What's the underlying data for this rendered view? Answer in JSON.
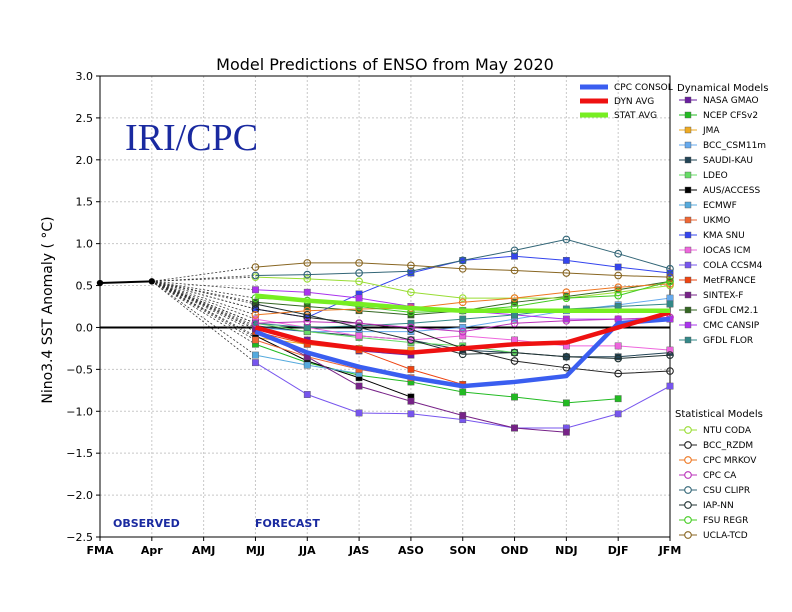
{
  "chart_data": {
    "type": "line",
    "title": "Model Predictions of ENSO from May 2020",
    "watermark": "IRI/CPC",
    "ylabel": "Nino3.4 SST Anomaly ( °C)",
    "xlabel": "",
    "ylim": [
      -2.5,
      3.0
    ],
    "ytick_labels": [
      "3.0",
      "2.5",
      "2.0",
      "1.5",
      "1.0",
      "0.5",
      "0.0",
      "−0.5",
      "−1.0",
      "−1.5",
      "−2.0",
      "−2.5"
    ],
    "ytick_values": [
      3.0,
      2.5,
      2.0,
      1.5,
      1.0,
      0.5,
      0.0,
      -0.5,
      -1.0,
      -1.5,
      -2.0,
      -2.5
    ],
    "categories": [
      "FMA",
      "Apr",
      "AMJ",
      "MJJ",
      "JJA",
      "JAS",
      "ASO",
      "SON",
      "OND",
      "NDJ",
      "DJF",
      "JFM"
    ],
    "grid": true,
    "observed_label": "OBSERVED",
    "forecast_label": "FORECAST",
    "observed": {
      "x": [
        "FMA",
        "Apr"
      ],
      "values": [
        0.53,
        0.55
      ]
    },
    "summary_series": [
      {
        "name": "CPC CONSOL",
        "color": "#3a5ef0",
        "values": [
          null,
          null,
          null,
          -0.05,
          -0.3,
          -0.47,
          -0.6,
          -0.7,
          -0.65,
          -0.58,
          0.05,
          0.1
        ]
      },
      {
        "name": "DYN AVG",
        "color": "#ee1111",
        "values": [
          null,
          null,
          null,
          0.0,
          -0.17,
          -0.25,
          -0.3,
          -0.25,
          -0.2,
          -0.18,
          0.0,
          0.18
        ]
      },
      {
        "name": "STAT AVG",
        "color": "#77ee22",
        "values": [
          null,
          null,
          null,
          0.38,
          0.32,
          0.28,
          0.23,
          0.2,
          0.2,
          0.2,
          0.2,
          0.2
        ]
      }
    ],
    "dynamical_title": "Dynamical Models",
    "dynamical_series": [
      {
        "name": "NASA GMAO",
        "color": "#6a1ea0",
        "values": [
          null,
          null,
          null,
          -0.02,
          -0.15,
          -0.28,
          -0.33,
          null,
          null,
          null,
          null,
          null
        ]
      },
      {
        "name": "NCEP CFSv2",
        "color": "#22bb22",
        "values": [
          null,
          null,
          null,
          -0.2,
          -0.42,
          -0.57,
          -0.65,
          -0.77,
          -0.83,
          -0.9,
          -0.85,
          null
        ]
      },
      {
        "name": "JMA",
        "color": "#eeaa22",
        "values": [
          null,
          null,
          null,
          -0.12,
          -0.2,
          -0.25,
          -0.27,
          null,
          null,
          null,
          null,
          null
        ]
      },
      {
        "name": "BCC_CSM11m",
        "color": "#66aaee",
        "values": [
          null,
          null,
          null,
          0.0,
          -0.05,
          -0.05,
          -0.05,
          0.0,
          0.1,
          0.2,
          0.27,
          0.35
        ]
      },
      {
        "name": "SAUDI-KAU",
        "color": "#224455",
        "values": [
          null,
          null,
          null,
          0.02,
          -0.05,
          -0.1,
          -0.15,
          -0.27,
          -0.3,
          -0.35,
          -0.35,
          -0.3
        ]
      },
      {
        "name": "LDEO",
        "color": "#66dd66",
        "values": [
          null,
          null,
          null,
          0.05,
          -0.05,
          -0.12,
          -0.18,
          -0.22,
          -0.3,
          null,
          null,
          null
        ]
      },
      {
        "name": "AUS/ACCESS",
        "color": "#000000",
        "values": [
          null,
          null,
          null,
          -0.1,
          -0.4,
          -0.6,
          -0.83,
          null,
          null,
          null,
          null,
          null
        ]
      },
      {
        "name": "ECMWF",
        "color": "#55aadd",
        "values": [
          null,
          null,
          null,
          -0.33,
          -0.45,
          -0.55,
          null,
          null,
          null,
          null,
          null,
          null
        ]
      },
      {
        "name": "UKMO",
        "color": "#ee6633",
        "values": [
          null,
          null,
          null,
          -0.15,
          -0.35,
          -0.5,
          -0.6,
          null,
          null,
          null,
          null,
          null
        ]
      },
      {
        "name": "KMA SNU",
        "color": "#3344ee",
        "values": [
          null,
          null,
          null,
          0.22,
          0.12,
          0.4,
          0.65,
          0.8,
          0.85,
          0.8,
          0.72,
          0.65
        ]
      },
      {
        "name": "IOCAS ICM",
        "color": "#ee66dd",
        "values": [
          null,
          null,
          null,
          0.1,
          0.0,
          -0.1,
          -0.15,
          -0.1,
          -0.15,
          -0.22,
          -0.22,
          -0.27
        ]
      },
      {
        "name": "COLA CCSM4",
        "color": "#7755ee",
        "values": [
          null,
          null,
          null,
          -0.42,
          -0.8,
          -1.02,
          -1.03,
          -1.1,
          -1.2,
          -1.2,
          -1.03,
          -0.7
        ]
      },
      {
        "name": "MetFRANCE",
        "color": "#ee4411",
        "values": [
          null,
          null,
          null,
          -0.05,
          -0.2,
          -0.27,
          -0.5,
          -0.68,
          null,
          null,
          null,
          null
        ]
      },
      {
        "name": "SINTEX-F",
        "color": "#772288",
        "values": [
          null,
          null,
          null,
          -0.02,
          -0.35,
          -0.7,
          -0.88,
          -1.05,
          -1.2,
          -1.25,
          null,
          null
        ]
      },
      {
        "name": "GFDL CM2.1",
        "color": "#336622",
        "values": [
          null,
          null,
          null,
          0.3,
          0.25,
          0.2,
          0.15,
          0.2,
          0.3,
          0.37,
          0.45,
          0.55
        ]
      },
      {
        "name": "CMC CANSIP",
        "color": "#aa33ee",
        "values": [
          null,
          null,
          null,
          0.45,
          0.42,
          0.35,
          0.25,
          0.2,
          0.15,
          0.1,
          0.1,
          0.1
        ]
      },
      {
        "name": "GFDL FLOR",
        "color": "#338888",
        "values": [
          null,
          null,
          null,
          0.05,
          0.0,
          0.02,
          0.05,
          0.1,
          0.15,
          0.22,
          0.25,
          0.28
        ]
      }
    ],
    "statistical_title": "Statistical Models",
    "statistical_series": [
      {
        "name": "NTU CODA",
        "color": "#99dd33",
        "values": [
          null,
          null,
          null,
          0.6,
          0.58,
          0.55,
          0.42,
          0.35,
          0.35,
          0.35,
          0.42,
          0.5
        ]
      },
      {
        "name": "BCC_RZDM",
        "color": "#222222",
        "values": [
          null,
          null,
          null,
          0.22,
          0.12,
          0.05,
          -0.02,
          -0.25,
          -0.4,
          -0.48,
          -0.55,
          -0.52
        ]
      },
      {
        "name": "CPC MRKOV",
        "color": "#ee7722",
        "values": [
          null,
          null,
          null,
          0.15,
          0.2,
          0.22,
          0.23,
          0.3,
          0.35,
          0.42,
          0.48,
          0.52
        ]
      },
      {
        "name": "CPC CA",
        "color": "#bb33bb",
        "values": [
          null,
          null,
          null,
          0.05,
          0.07,
          0.05,
          0.0,
          -0.05,
          0.05,
          0.08,
          0.1,
          0.12
        ]
      },
      {
        "name": "CSU CLIPR",
        "color": "#336677",
        "values": [
          null,
          null,
          null,
          0.62,
          0.63,
          0.65,
          0.67,
          0.8,
          0.92,
          1.05,
          0.88,
          0.7
        ]
      },
      {
        "name": "IAP-NN",
        "color": "#223333",
        "values": [
          null,
          null,
          null,
          0.28,
          0.15,
          0.0,
          -0.15,
          -0.32,
          -0.3,
          -0.35,
          -0.37,
          -0.33
        ]
      },
      {
        "name": "FSU REGR",
        "color": "#44cc22",
        "values": [
          null,
          null,
          null,
          0.35,
          0.32,
          0.25,
          0.18,
          0.2,
          0.25,
          0.35,
          0.38,
          0.55
        ]
      },
      {
        "name": "UCLA-TCD",
        "color": "#886622",
        "values": [
          null,
          null,
          null,
          0.72,
          0.77,
          0.77,
          0.74,
          0.7,
          0.68,
          0.65,
          0.62,
          0.6
        ]
      }
    ]
  }
}
